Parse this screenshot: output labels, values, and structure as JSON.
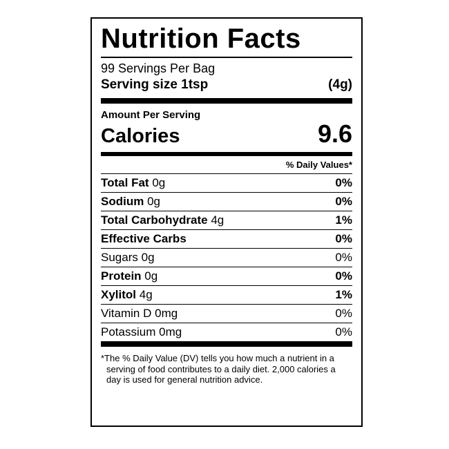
{
  "label": {
    "title": "Nutrition Facts",
    "servings_per_container": "99 Servings Per Bag",
    "serving_size": {
      "label": "Serving size 1tsp",
      "weight": "(4g)"
    },
    "amount_per_serving": "Amount Per Serving",
    "calories": {
      "label": "Calories",
      "value": "9.6"
    },
    "daily_value_header": "% Daily Values*",
    "rows": [
      {
        "name": "Total Fat",
        "amount": "0g",
        "daily_value": "0%"
      },
      {
        "name": "Sodium",
        "amount": "0g",
        "daily_value": "0%"
      },
      {
        "name": "Total Carbohydrate",
        "amount": "4g",
        "daily_value": "1%"
      },
      {
        "name": "Effective Carbs",
        "amount": "",
        "daily_value": "0%"
      },
      {
        "name": "Sugars",
        "amount": "0g",
        "daily_value": "0%"
      },
      {
        "name": "Protein",
        "amount": "0g",
        "daily_value": "0%"
      },
      {
        "name": "Xylitol",
        "amount": "4g",
        "daily_value": "1%"
      },
      {
        "name": "Vitamin D",
        "amount": "0mg",
        "daily_value": "0%"
      },
      {
        "name": "Potassium",
        "amount": "0mg",
        "daily_value": "0%"
      }
    ],
    "footnote": "*The % Daily Value (DV) tells you how much a nutrient in a serving of food contributes to a daily diet. 2,000 calories a day is used for general nutrition advice.",
    "colors": {
      "text": "#000000",
      "background": "#ffffff",
      "border": "#000000"
    }
  }
}
